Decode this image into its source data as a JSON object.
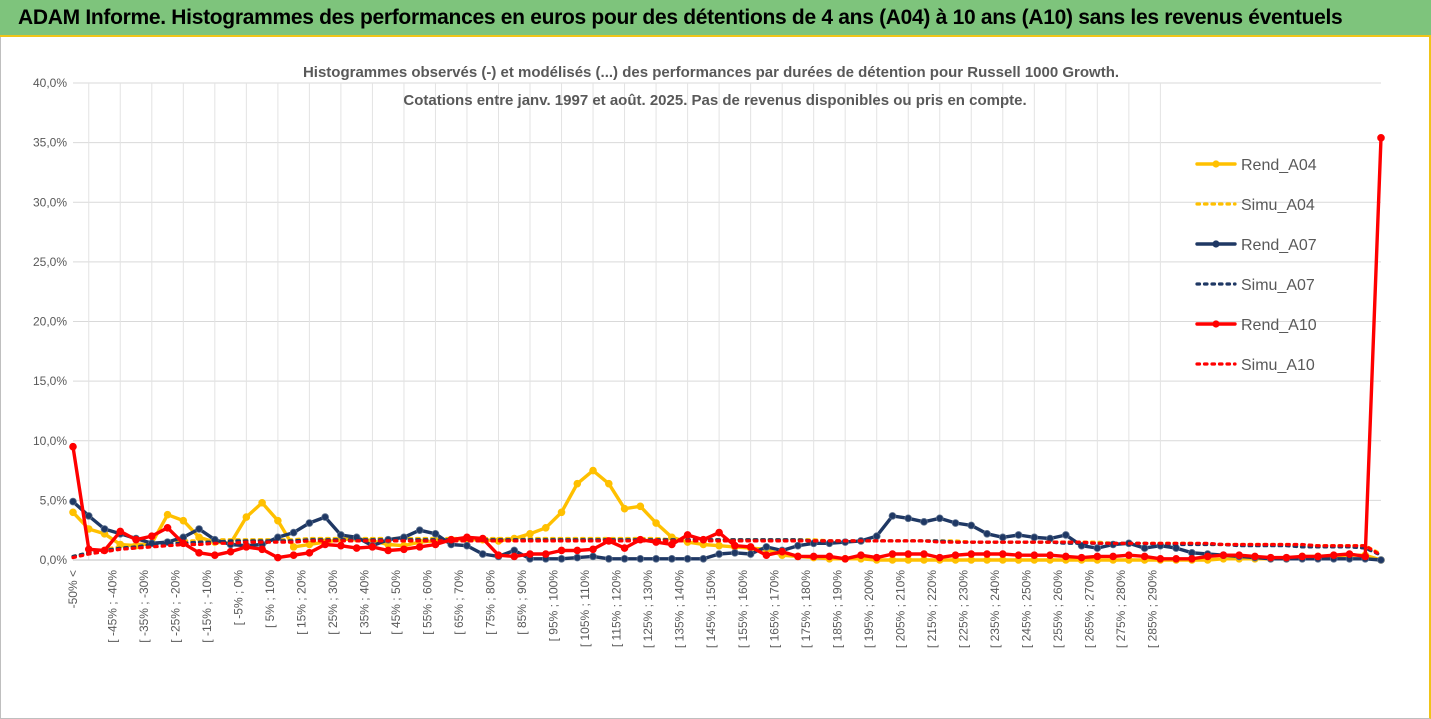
{
  "banner": {
    "title": "ADAM Informe. Histogrammes des performances en euros pour des détentions de 4 ans (A04) à 10 ans (A10) sans les revenus éventuels"
  },
  "chart_data": {
    "type": "line",
    "title_lines": [
      "Histogrammes observés (-) et modélisés (...) des performances par durées de détention pour Russell 1000 Growth.",
      "Cotations entre janv. 1997 et août. 2025. Pas de revenus disponibles ou pris en compte."
    ],
    "ylim": [
      0,
      40
    ],
    "y_ticks": [
      "0,0%",
      "5,0%",
      "10,0%",
      "15,0%",
      "20,0%",
      "25,0%",
      "30,0%",
      "35,0%",
      "40,0%"
    ],
    "grid": true,
    "legend_position": "top-right",
    "x_labels_visible": [
      "-50% <",
      "[ -45% ; -40%",
      "[ -35% ; -30%",
      "[ -25% ; -20%",
      "[ -15% ; -10%",
      "[ -5% ; 0%",
      "[ 5% ; 10%",
      "[ 15% ; 20%",
      "[ 25% ; 30%",
      "[ 35% ; 40%",
      "[ 45% ; 50%",
      "[ 55% ; 60%",
      "[ 65% ; 70%",
      "[ 75% ; 80%",
      "[ 85% ; 90%",
      "[ 95% ; 100%",
      "[ 105% ; 110%",
      "[ 115% ; 120%",
      "[ 125% ; 130%",
      "[ 135% ; 140%",
      "[ 145% ; 150%",
      "[ 155% ; 160%",
      "[ 165% ; 170%",
      "[ 175% ; 180%",
      "[ 185% ; 190%",
      "[ 195% ; 200%",
      "[ 205% ; 210%",
      "[ 215% ; 220%",
      "[ 225% ; 230%",
      "[ 235% ; 240%",
      "[ 245% ; 250%",
      "[ 255% ; 260%",
      "[ 265% ; 270%",
      "[ 275% ; 280%",
      "[ 285% ; 290%"
    ],
    "series": [
      {
        "name": "Rend_A04",
        "color": "#ffc000",
        "style": "solid-marker",
        "values": [
          4.0,
          2.6,
          2.2,
          1.3,
          1.2,
          1.4,
          3.8,
          3.3,
          1.9,
          1.5,
          1.4,
          3.6,
          4.8,
          3.3,
          1.1,
          1.3,
          1.5,
          1.7,
          1.8,
          1.6,
          1.3,
          1.2,
          1.5,
          1.6,
          1.7,
          1.7,
          1.7,
          1.6,
          1.8,
          2.2,
          2.7,
          4.0,
          6.4,
          7.5,
          6.4,
          4.3,
          4.5,
          3.1,
          1.9,
          1.5,
          1.3,
          1.2,
          1.1,
          1.0,
          0.9,
          0.4,
          0.3,
          0.2,
          0.1,
          0.1,
          0.1,
          0,
          0,
          0,
          0,
          0,
          0,
          0,
          0,
          0,
          0,
          0,
          0,
          0,
          0,
          0,
          0,
          0,
          0,
          0,
          0,
          0,
          0,
          0.1,
          0.1,
          0.1,
          0.1,
          0.1,
          0.3,
          0.3,
          0.3,
          0.4,
          0.4,
          0.0
        ]
      },
      {
        "name": "Simu_A04",
        "color": "#ffc000",
        "style": "dotted",
        "values": [
          0.3,
          0.6,
          0.9,
          1.1,
          1.3,
          1.4,
          1.5,
          1.6,
          1.6,
          1.7,
          1.7,
          1.7,
          1.7,
          1.7,
          1.7,
          1.8,
          1.8,
          1.8,
          1.8,
          1.8,
          1.8,
          1.8,
          1.8,
          1.8,
          1.8,
          1.8,
          1.8,
          1.8,
          1.8,
          1.8,
          1.8,
          1.8,
          1.8,
          1.8,
          1.8,
          1.8,
          1.8,
          1.8,
          1.7,
          1.7,
          1.7,
          1.7,
          1.7,
          1.7,
          1.7,
          1.7,
          1.7,
          1.7,
          1.6,
          1.6,
          1.6,
          1.6,
          1.6,
          1.6,
          1.6,
          1.6,
          1.6,
          1.5,
          1.5,
          1.5,
          1.5,
          1.5,
          1.5,
          1.5,
          1.5,
          1.5,
          1.4,
          1.4,
          1.4,
          1.4,
          1.4,
          1.4,
          1.3,
          1.3,
          1.3,
          1.3,
          1.3,
          1.3,
          1.2,
          1.2,
          1.2,
          1.2,
          1.2,
          0.5
        ]
      },
      {
        "name": "Rend_A07",
        "color": "#1f3864",
        "style": "solid-marker",
        "values": [
          4.9,
          3.7,
          2.6,
          2.2,
          1.8,
          1.4,
          1.5,
          1.9,
          2.6,
          1.7,
          1.3,
          1.2,
          1.3,
          1.9,
          2.3,
          3.1,
          3.6,
          2.1,
          1.9,
          1.2,
          1.7,
          1.9,
          2.5,
          2.2,
          1.3,
          1.2,
          0.5,
          0.3,
          0.8,
          0.1,
          0.1,
          0.1,
          0.2,
          0.3,
          0.1,
          0.1,
          0.1,
          0.1,
          0.1,
          0.1,
          0.1,
          0.5,
          0.6,
          0.5,
          1.1,
          0.8,
          1.2,
          1.4,
          1.4,
          1.5,
          1.6,
          2.0,
          3.7,
          3.5,
          3.2,
          3.5,
          3.1,
          2.9,
          2.2,
          1.9,
          2.1,
          1.9,
          1.8,
          2.1,
          1.2,
          1.0,
          1.3,
          1.4,
          1.0,
          1.2,
          1.0,
          0.6,
          0.5,
          0.4,
          0.3,
          0.2,
          0.1,
          0.1,
          0.1,
          0.1,
          0.1,
          0.1,
          0.1,
          0.0
        ]
      },
      {
        "name": "Simu_A07",
        "color": "#1f3864",
        "style": "dotted",
        "values": [
          0.3,
          0.6,
          0.8,
          1.0,
          1.1,
          1.3,
          1.4,
          1.4,
          1.5,
          1.5,
          1.6,
          1.6,
          1.6,
          1.6,
          1.6,
          1.7,
          1.7,
          1.7,
          1.7,
          1.7,
          1.7,
          1.7,
          1.7,
          1.7,
          1.7,
          1.7,
          1.7,
          1.7,
          1.7,
          1.7,
          1.7,
          1.7,
          1.7,
          1.7,
          1.7,
          1.7,
          1.7,
          1.7,
          1.7,
          1.7,
          1.7,
          1.7,
          1.7,
          1.7,
          1.7,
          1.7,
          1.7,
          1.6,
          1.6,
          1.6,
          1.6,
          1.6,
          1.6,
          1.6,
          1.6,
          1.6,
          1.5,
          1.5,
          1.5,
          1.5,
          1.5,
          1.5,
          1.5,
          1.4,
          1.4,
          1.4,
          1.4,
          1.4,
          1.4,
          1.3,
          1.3,
          1.3,
          1.3,
          1.3,
          1.2,
          1.2,
          1.2,
          1.2,
          1.1,
          1.1,
          1.1,
          1.1,
          1.0,
          0.4
        ]
      },
      {
        "name": "Rend_A10",
        "color": "#ff0000",
        "style": "solid-marker",
        "values": [
          9.5,
          0.9,
          0.8,
          2.4,
          1.7,
          2.0,
          2.7,
          1.4,
          0.6,
          0.4,
          0.7,
          1.1,
          0.9,
          0.2,
          0.4,
          0.6,
          1.3,
          1.2,
          1.0,
          1.1,
          0.8,
          0.9,
          1.1,
          1.3,
          1.7,
          1.9,
          1.8,
          0.4,
          0.3,
          0.5,
          0.5,
          0.8,
          0.8,
          0.9,
          1.6,
          1.0,
          1.7,
          1.5,
          1.3,
          2.1,
          1.7,
          2.3,
          1.2,
          1.1,
          0.4,
          0.7,
          0.3,
          0.3,
          0.3,
          0.1,
          0.4,
          0.2,
          0.5,
          0.5,
          0.5,
          0.2,
          0.4,
          0.5,
          0.5,
          0.5,
          0.4,
          0.4,
          0.4,
          0.3,
          0.2,
          0.3,
          0.3,
          0.4,
          0.3,
          0.1,
          0.1,
          0.1,
          0.3,
          0.4,
          0.4,
          0.3,
          0.2,
          0.2,
          0.3,
          0.3,
          0.4,
          0.5,
          0.3,
          35.4
        ]
      },
      {
        "name": "Simu_A10",
        "color": "#ff0000",
        "style": "dotted",
        "values": [
          0.2,
          0.5,
          0.7,
          0.9,
          1.0,
          1.1,
          1.2,
          1.3,
          1.3,
          1.4,
          1.4,
          1.5,
          1.5,
          1.5,
          1.5,
          1.6,
          1.6,
          1.6,
          1.6,
          1.6,
          1.6,
          1.6,
          1.6,
          1.6,
          1.6,
          1.6,
          1.6,
          1.6,
          1.6,
          1.6,
          1.6,
          1.6,
          1.6,
          1.6,
          1.6,
          1.6,
          1.6,
          1.6,
          1.6,
          1.6,
          1.6,
          1.6,
          1.6,
          1.6,
          1.6,
          1.6,
          1.6,
          1.6,
          1.6,
          1.6,
          1.6,
          1.6,
          1.6,
          1.6,
          1.6,
          1.5,
          1.5,
          1.5,
          1.5,
          1.5,
          1.5,
          1.5,
          1.5,
          1.5,
          1.5,
          1.4,
          1.4,
          1.4,
          1.4,
          1.4,
          1.4,
          1.4,
          1.4,
          1.3,
          1.3,
          1.3,
          1.3,
          1.3,
          1.3,
          1.2,
          1.2,
          1.2,
          1.2,
          0.4
        ]
      }
    ]
  }
}
